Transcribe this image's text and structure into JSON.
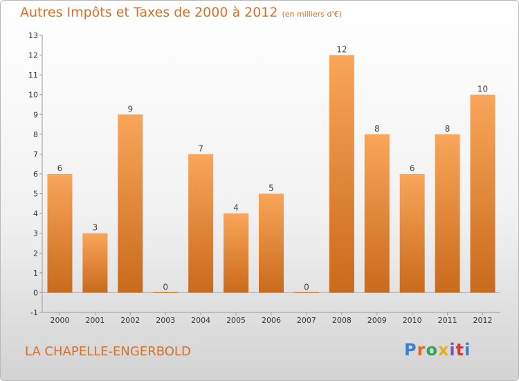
{
  "title": "Autres Impôts et Taxes de 2000 à 2012",
  "unit": "(en milliers d'€)",
  "commune": "LA CHAPELLE-ENGERBOLD",
  "logo": {
    "p": "P",
    "r": "r",
    "o": "o",
    "x": "x",
    "i": "i",
    "t": "t",
    "i2": "i"
  },
  "colors": {
    "accent": "#d4702a",
    "bar_light": "#f9a65a",
    "bar_dark": "#c96a1c"
  },
  "chart_data": {
    "type": "bar",
    "categories": [
      "2000",
      "2001",
      "2002",
      "2003",
      "2004",
      "2005",
      "2006",
      "2007",
      "2008",
      "2009",
      "2010",
      "2011",
      "2012"
    ],
    "values": [
      6,
      3,
      9,
      0,
      7,
      4,
      5,
      0,
      12,
      8,
      6,
      8,
      10
    ],
    "ylim": [
      -1,
      13
    ],
    "yticks": [
      -1,
      0,
      1,
      2,
      3,
      4,
      5,
      6,
      7,
      8,
      9,
      10,
      11,
      12,
      13
    ],
    "grid": false,
    "data_labels": true
  }
}
